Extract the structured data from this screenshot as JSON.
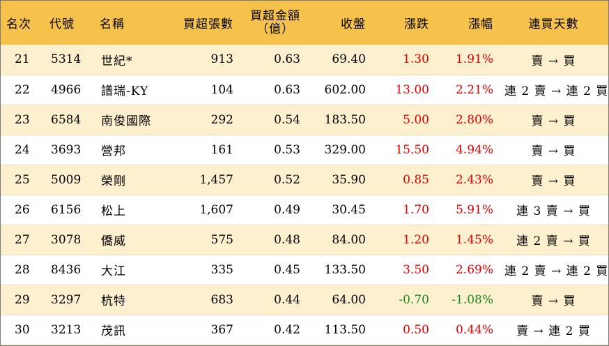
{
  "headers": {
    "rank": "名次",
    "code": "代號",
    "name": "名稱",
    "lots": "買超張數",
    "amount_line1": "買超金額",
    "amount_line2": "（億）",
    "close": "收盤",
    "change": "漲跌",
    "pct": "漲幅",
    "days": "連買天數"
  },
  "colors": {
    "header_bg": "#f7c24b",
    "stripe_bg": "#fdf0cf",
    "up": "#e00000",
    "down": "#1a8a1a"
  },
  "rows": [
    {
      "rank": "21",
      "code": "5314",
      "name": "世紀*",
      "lots": "913",
      "amount": "0.63",
      "close": "69.40",
      "change": "1.30",
      "pct": "1.91%",
      "days": "賣 → 買",
      "dir": "up"
    },
    {
      "rank": "22",
      "code": "4966",
      "name": "譜瑞-KY",
      "lots": "104",
      "amount": "0.63",
      "close": "602.00",
      "change": "13.00",
      "pct": "2.21%",
      "days": "連 2 賣 → 連 2 買",
      "dir": "up"
    },
    {
      "rank": "23",
      "code": "6584",
      "name": "南俊國際",
      "lots": "292",
      "amount": "0.54",
      "close": "183.50",
      "change": "5.00",
      "pct": "2.80%",
      "days": "賣 → 買",
      "dir": "up"
    },
    {
      "rank": "24",
      "code": "3693",
      "name": "營邦",
      "lots": "161",
      "amount": "0.53",
      "close": "329.00",
      "change": "15.50",
      "pct": "4.94%",
      "days": "賣 → 買",
      "dir": "up"
    },
    {
      "rank": "25",
      "code": "5009",
      "name": "榮剛",
      "lots": "1,457",
      "amount": "0.52",
      "close": "35.90",
      "change": "0.85",
      "pct": "2.43%",
      "days": "賣 → 買",
      "dir": "up"
    },
    {
      "rank": "26",
      "code": "6156",
      "name": "松上",
      "lots": "1,607",
      "amount": "0.49",
      "close": "30.45",
      "change": "1.70",
      "pct": "5.91%",
      "days": "連 3 賣 → 買",
      "dir": "up"
    },
    {
      "rank": "27",
      "code": "3078",
      "name": "僑威",
      "lots": "575",
      "amount": "0.48",
      "close": "84.00",
      "change": "1.20",
      "pct": "1.45%",
      "days": "連 2 賣 → 買",
      "dir": "up"
    },
    {
      "rank": "28",
      "code": "8436",
      "name": "大江",
      "lots": "335",
      "amount": "0.45",
      "close": "133.50",
      "change": "3.50",
      "pct": "2.69%",
      "days": "連 2 賣 → 連 2 買",
      "dir": "up"
    },
    {
      "rank": "29",
      "code": "3297",
      "name": "杭特",
      "lots": "683",
      "amount": "0.44",
      "close": "64.00",
      "change": "-0.70",
      "pct": "-1.08%",
      "days": "賣 → 買",
      "dir": "down"
    },
    {
      "rank": "30",
      "code": "3213",
      "name": "茂訊",
      "lots": "367",
      "amount": "0.42",
      "close": "113.50",
      "change": "0.50",
      "pct": "0.44%",
      "days": "賣 → 連 2 買",
      "dir": "up"
    }
  ]
}
